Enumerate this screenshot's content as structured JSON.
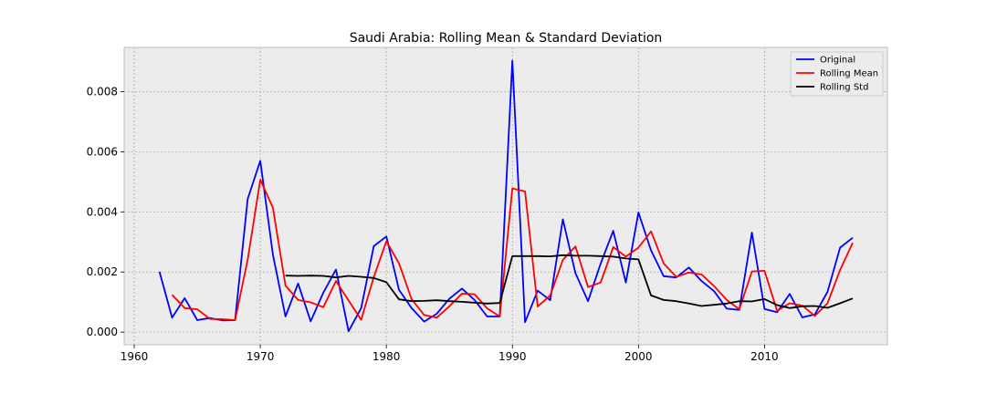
{
  "chart_data": {
    "type": "line",
    "title": "Saudi Arabia: Rolling Mean & Standard Deviation",
    "xlabel": "",
    "ylabel": "",
    "xlim": [
      1959.2,
      2019.75
    ],
    "ylim": [
      -0.00042,
      0.00947
    ],
    "x_ticks": [
      1960,
      1970,
      1980,
      1990,
      2000,
      2010
    ],
    "y_ticks": [
      0.0,
      0.002,
      0.004,
      0.006,
      0.008
    ],
    "y_tick_labels": [
      "0.000",
      "0.002",
      "0.004",
      "0.006",
      "0.008"
    ],
    "grid": true,
    "legend_position": "top-right",
    "series": [
      {
        "name": "Original",
        "color": "#0000ff",
        "x": [
          1962,
          1963,
          1964,
          1965,
          1966,
          1967,
          1968,
          1969,
          1970,
          1971,
          1972,
          1973,
          1974,
          1975,
          1976,
          1977,
          1978,
          1979,
          1980,
          1981,
          1982,
          1983,
          1984,
          1985,
          1986,
          1987,
          1988,
          1989,
          1990,
          1991,
          1992,
          1993,
          1994,
          1995,
          1996,
          1997,
          1998,
          1999,
          2000,
          2001,
          2002,
          2003,
          2004,
          2005,
          2006,
          2007,
          2008,
          2009,
          2010,
          2011,
          2012,
          2013,
          2014,
          2015,
          2016,
          2017
        ],
        "y": [
          0.00201,
          0.00048,
          0.00113,
          0.0004,
          0.00047,
          0.00039,
          0.0004,
          0.00443,
          0.0057,
          0.00258,
          0.00052,
          0.00162,
          0.00036,
          0.00131,
          0.00208,
          3e-05,
          0.0008,
          0.00286,
          0.00318,
          0.00141,
          0.0008,
          0.00035,
          0.00061,
          0.00111,
          0.00145,
          0.00107,
          0.00052,
          0.00052,
          0.00903,
          0.00033,
          0.00138,
          0.00106,
          0.00375,
          0.00196,
          0.00103,
          0.00228,
          0.00337,
          0.00165,
          0.00398,
          0.00272,
          0.00186,
          0.00182,
          0.00215,
          0.0017,
          0.00136,
          0.00078,
          0.00074,
          0.00331,
          0.00077,
          0.00066,
          0.00127,
          0.00049,
          0.00059,
          0.00134,
          0.00281,
          0.00314
        ]
      },
      {
        "name": "Rolling Mean",
        "color": "#ff0000",
        "x": [
          1963,
          1964,
          1965,
          1966,
          1967,
          1968,
          1969,
          1970,
          1971,
          1972,
          1973,
          1974,
          1975,
          1976,
          1977,
          1978,
          1979,
          1980,
          1981,
          1982,
          1983,
          1984,
          1985,
          1986,
          1987,
          1988,
          1989,
          1990,
          1991,
          1992,
          1993,
          1994,
          1995,
          1996,
          1997,
          1998,
          1999,
          2000,
          2001,
          2002,
          2003,
          2004,
          2005,
          2006,
          2007,
          2008,
          2009,
          2010,
          2011,
          2012,
          2013,
          2014,
          2015,
          2016,
          2017
        ],
        "y": [
          0.00124,
          0.0008,
          0.00076,
          0.00044,
          0.00043,
          0.0004,
          0.00241,
          0.00507,
          0.00414,
          0.00155,
          0.00107,
          0.00099,
          0.00083,
          0.0017,
          0.00105,
          0.00041,
          0.00183,
          0.00302,
          0.00229,
          0.0011,
          0.00057,
          0.00048,
          0.00086,
          0.00128,
          0.00126,
          0.00079,
          0.00052,
          0.00478,
          0.00468,
          0.00085,
          0.00122,
          0.0024,
          0.00285,
          0.0015,
          0.00165,
          0.00283,
          0.00251,
          0.00281,
          0.00335,
          0.00229,
          0.00184,
          0.00198,
          0.00192,
          0.00153,
          0.00107,
          0.00076,
          0.00202,
          0.00204,
          0.00071,
          0.00096,
          0.00088,
          0.00054,
          0.00096,
          0.00207,
          0.00297
        ]
      },
      {
        "name": "Rolling Std",
        "color": "#000000",
        "x": [
          1972,
          1973,
          1974,
          1975,
          1976,
          1977,
          1978,
          1979,
          1980,
          1981,
          1982,
          1983,
          1984,
          1985,
          1986,
          1987,
          1988,
          1989,
          1990,
          1991,
          1992,
          1993,
          1994,
          1995,
          1996,
          1997,
          1998,
          1999,
          2000,
          2001,
          2002,
          2003,
          2004,
          2005,
          2006,
          2007,
          2008,
          2009,
          2010,
          2011,
          2012,
          2013,
          2014,
          2015,
          2016,
          2017
        ],
        "y": [
          0.00188,
          0.00187,
          0.00188,
          0.00187,
          0.00182,
          0.00187,
          0.00184,
          0.0018,
          0.00166,
          0.00109,
          0.00103,
          0.00104,
          0.00106,
          0.00103,
          0.00101,
          0.00098,
          0.00095,
          0.00097,
          0.00253,
          0.00253,
          0.00253,
          0.00252,
          0.00256,
          0.00254,
          0.00254,
          0.00253,
          0.00251,
          0.00245,
          0.00242,
          0.00122,
          0.00107,
          0.00103,
          0.00095,
          0.00087,
          0.00091,
          0.00095,
          0.00103,
          0.00102,
          0.0011,
          0.0009,
          0.0008,
          0.00086,
          0.00087,
          0.00081,
          0.00096,
          0.00112
        ]
      }
    ]
  }
}
